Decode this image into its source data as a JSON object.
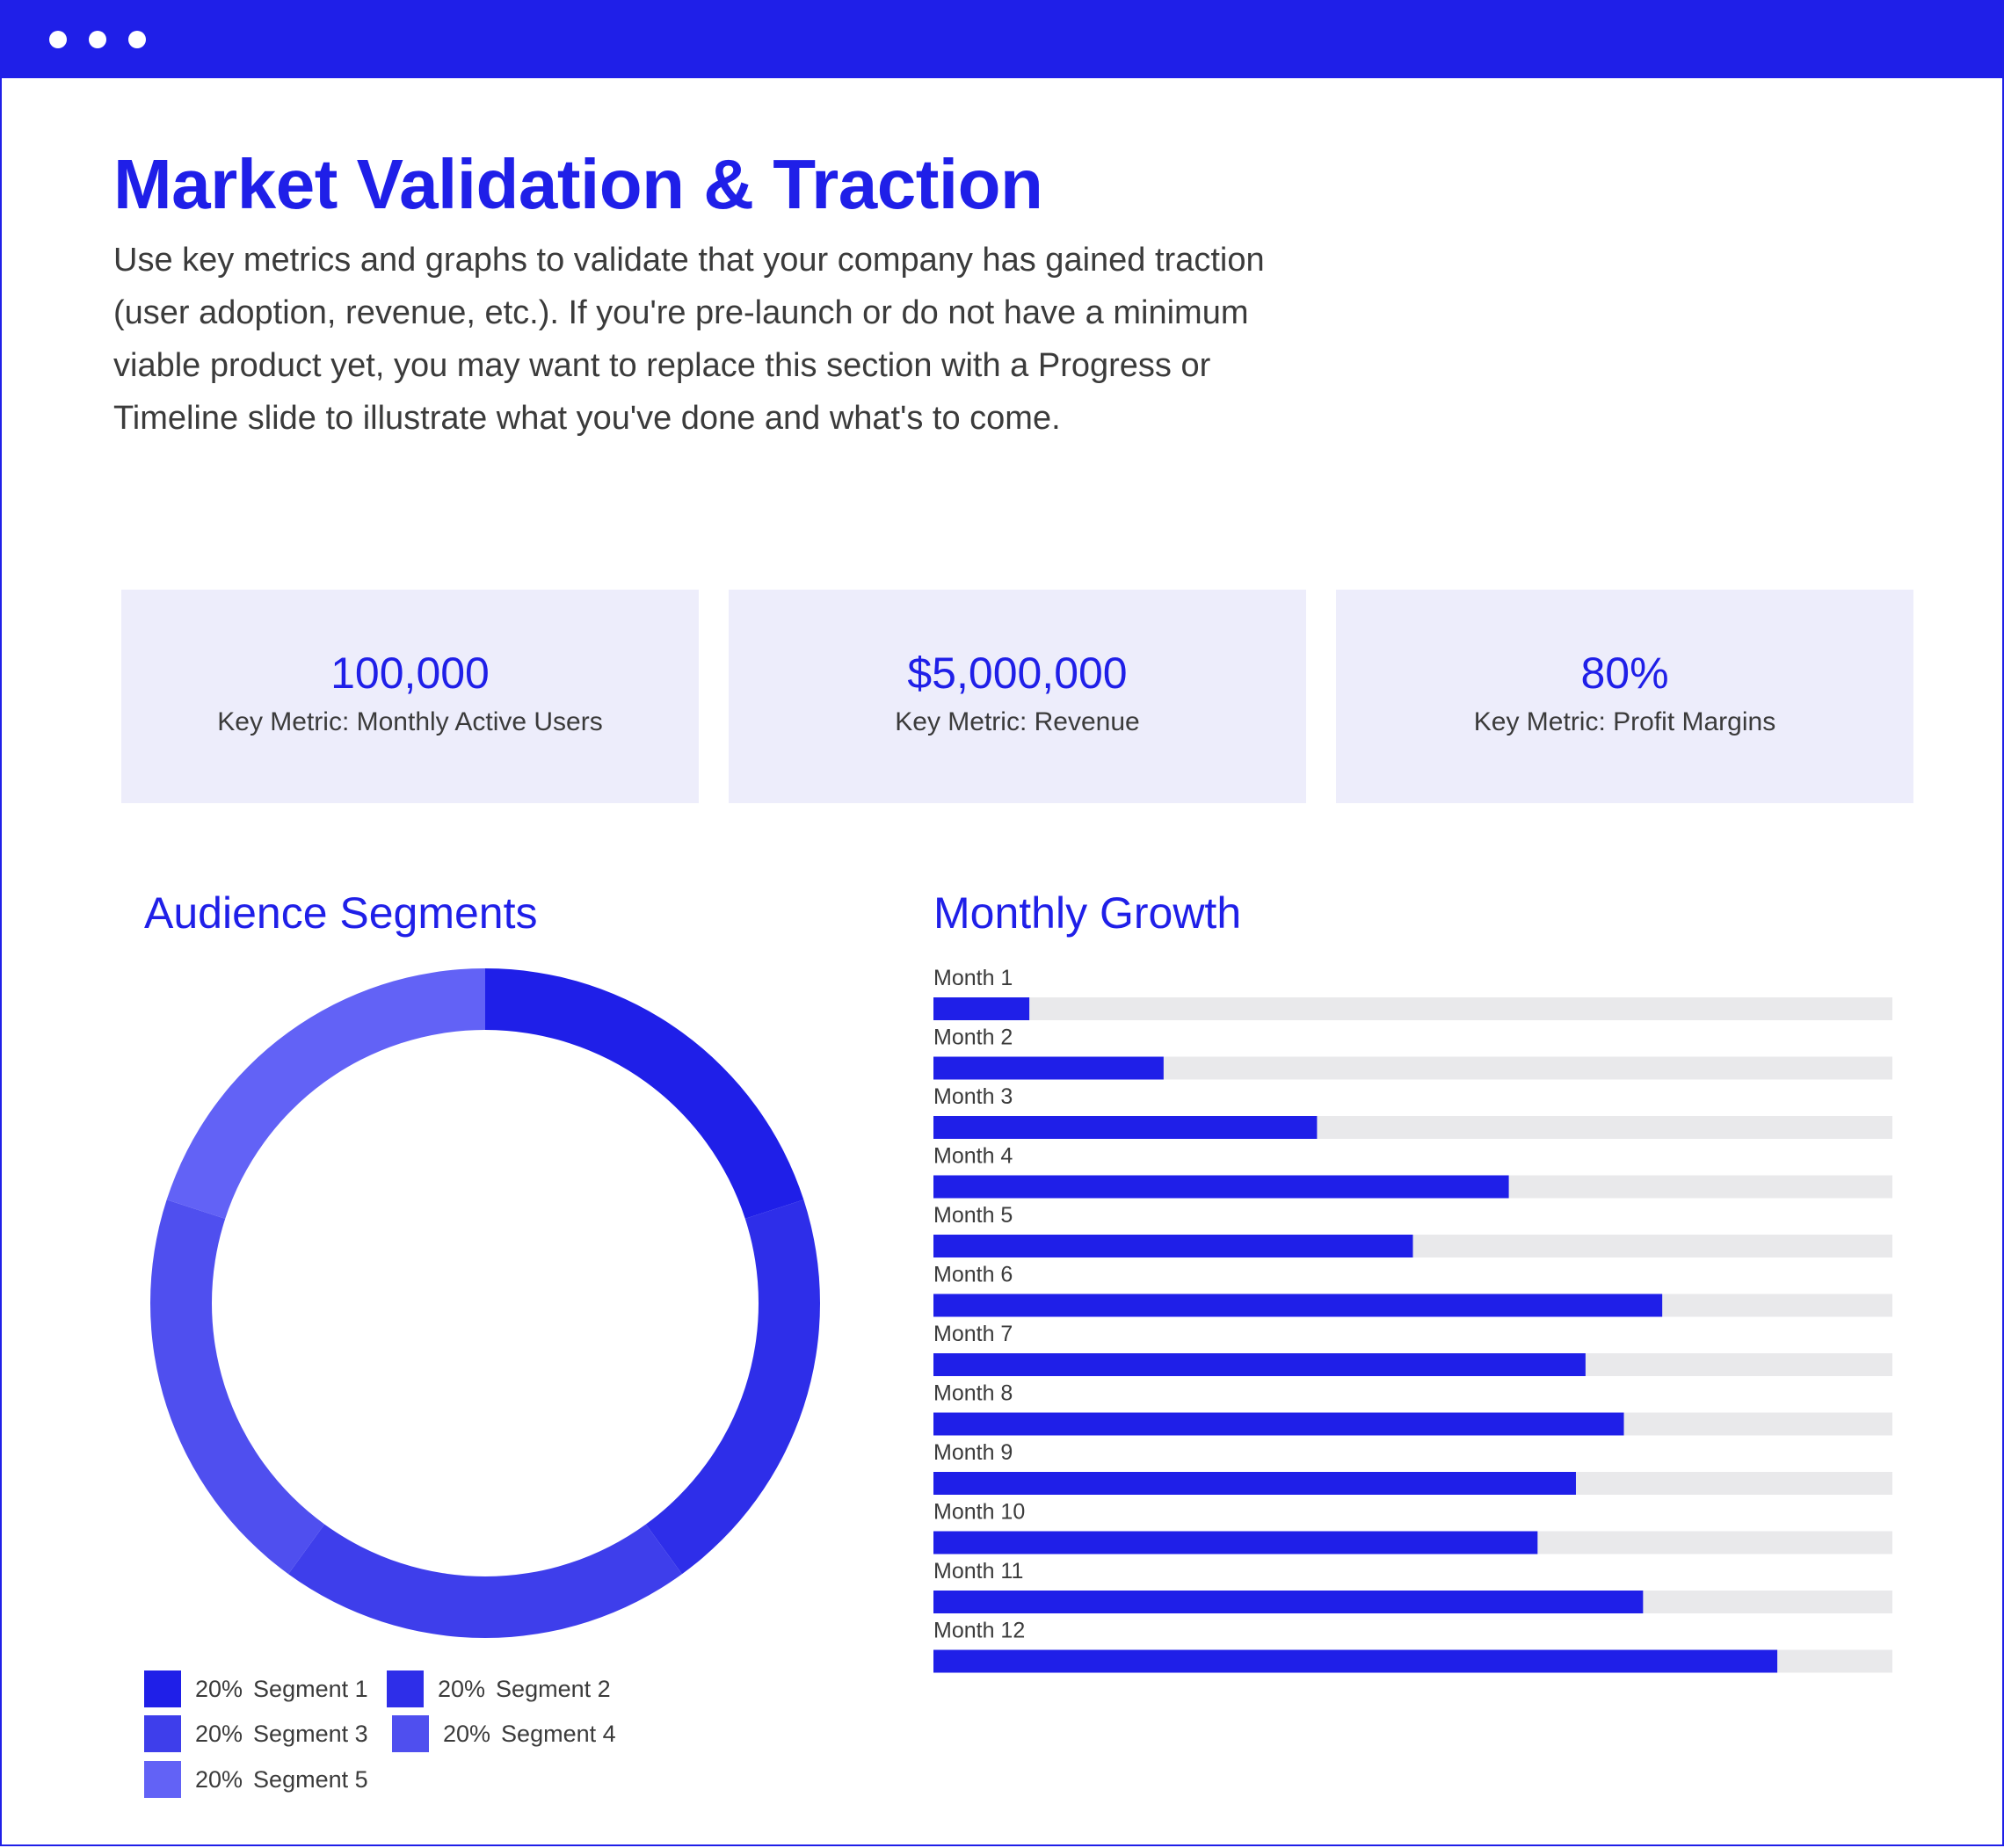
{
  "window": {
    "accent": "#1f1fe8"
  },
  "header": {
    "title": "Market Validation & Traction",
    "description": "Use key metrics and graphs to validate that your company has gained traction (user adoption, revenue, etc.). If you're pre-launch or do not have a minimum viable product yet, you may want to replace this section with a Progress or Timeline slide to illustrate what you've done and what's to come."
  },
  "metrics": [
    {
      "value": "100,000",
      "label": "Key Metric: Monthly Active Users"
    },
    {
      "value": "$5,000,000",
      "label": "Key Metric: Revenue"
    },
    {
      "value": "80%",
      "label": "Key Metric: Profit Margins"
    }
  ],
  "chart_data": [
    {
      "type": "pie",
      "title": "Audience Segments",
      "labels": [
        "Segment 1",
        "Segment 2",
        "Segment 3",
        "Segment 4",
        "Segment 5"
      ],
      "values": [
        20,
        20,
        20,
        20,
        20
      ],
      "value_labels": [
        "20%",
        "20%",
        "20%",
        "20%",
        "20%"
      ],
      "colors": [
        "#1f1fe8",
        "#2e2ee9",
        "#3e3eeb",
        "#4f4fef",
        "#6262f6"
      ],
      "donut": true
    },
    {
      "type": "bar",
      "orientation": "horizontal",
      "title": "Monthly Growth",
      "categories": [
        "Month 1",
        "Month 2",
        "Month 3",
        "Month 4",
        "Month 5",
        "Month 6",
        "Month 7",
        "Month 8",
        "Month 9",
        "Month 10",
        "Month 11",
        "Month 12"
      ],
      "values": [
        10,
        24,
        40,
        60,
        50,
        76,
        68,
        72,
        67,
        63,
        74,
        88
      ],
      "xlim": [
        0,
        100
      ],
      "bar_color": "#1f1fe8",
      "track_color": "#e9e9eb"
    }
  ]
}
